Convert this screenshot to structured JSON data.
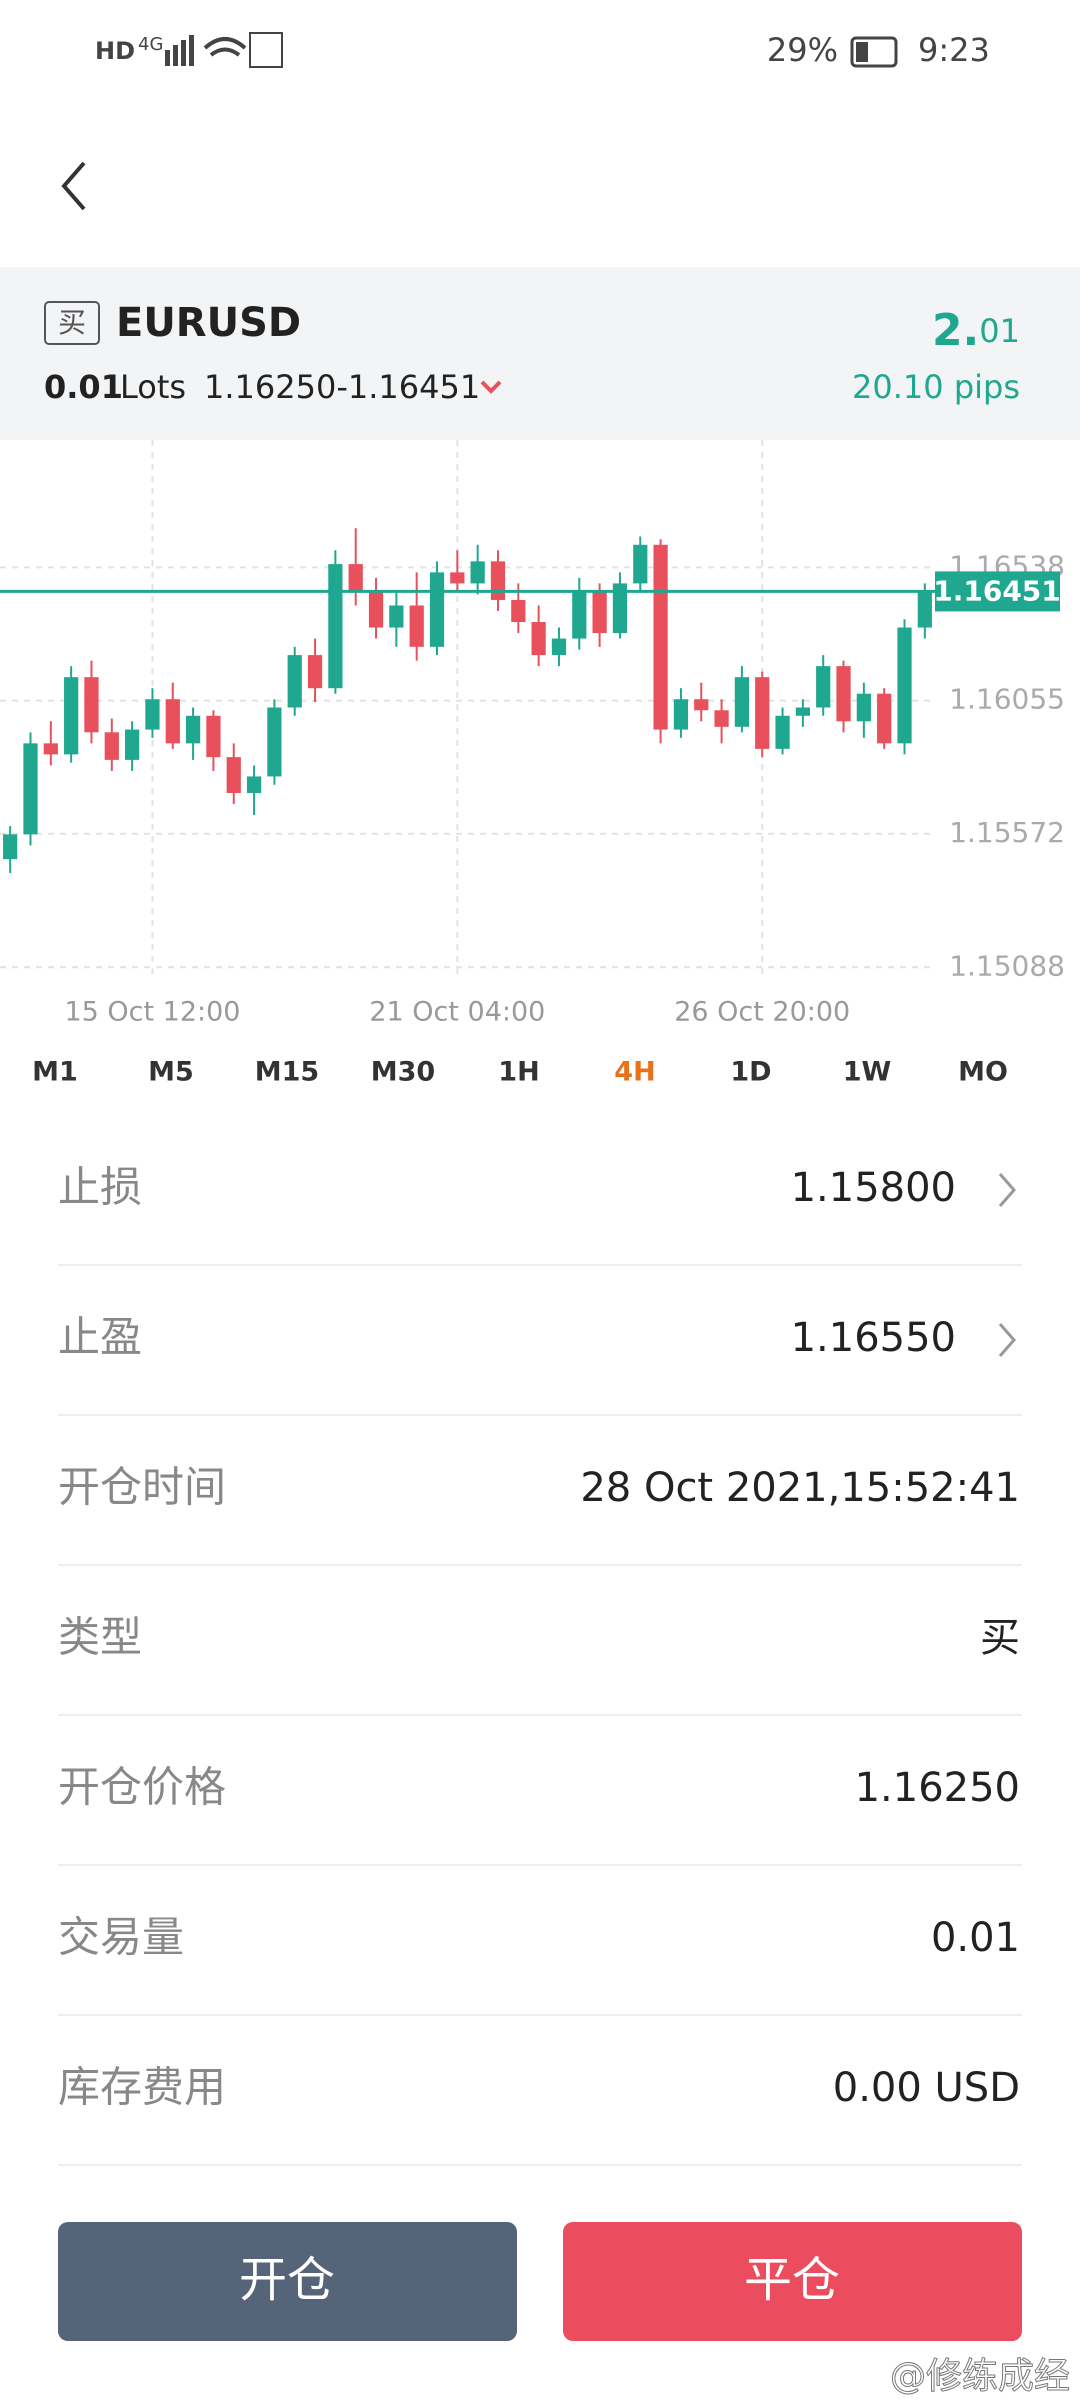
{
  "status_bar": {
    "network": "HD",
    "signal": "4G",
    "battery": "29%",
    "time": "9:23"
  },
  "header": {
    "side_badge": "买",
    "symbol": "EURUSD",
    "lots": "0.01",
    "lots_unit": "Lots",
    "price_range": "1.16250-1.16451",
    "profit_int": "2.",
    "profit_dec": "01",
    "pips": "20.10 pips"
  },
  "chart_data": {
    "type": "candlestick",
    "categories": [
      null,
      null,
      null,
      null,
      null,
      null,
      null,
      "15 Oct  12:00",
      null,
      null,
      null,
      null,
      null,
      null,
      null,
      null,
      null,
      null,
      null,
      null,
      null,
      null,
      "21 Oct  04:00",
      null,
      null,
      null,
      null,
      null,
      null,
      null,
      null,
      null,
      null,
      null,
      null,
      null,
      null,
      "26 Oct  20:00",
      null,
      null,
      null,
      null,
      null,
      null,
      null,
      null
    ],
    "open": [
      1.1548,
      1.1557,
      1.159,
      1.1586,
      1.1614,
      1.1594,
      1.1584,
      1.1595,
      1.1606,
      1.159,
      1.16,
      1.1585,
      1.1572,
      1.1578,
      1.1603,
      1.1622,
      1.161,
      1.1655,
      1.1645,
      1.1632,
      1.164,
      1.1625,
      1.1652,
      1.1648,
      1.1656,
      1.1642,
      1.1634,
      1.1622,
      1.1628,
      1.1645,
      1.163,
      1.1648,
      1.1662,
      1.1595,
      1.1606,
      1.1602,
      1.1596,
      1.1614,
      1.1588,
      1.16,
      1.1603,
      1.1618,
      1.1598,
      1.1608,
      1.159,
      1.1632
    ],
    "high": [
      1.156,
      1.1594,
      1.1598,
      1.1618,
      1.162,
      1.1599,
      1.1598,
      1.161,
      1.1612,
      1.1603,
      1.1602,
      1.159,
      1.1582,
      1.1606,
      1.1625,
      1.1628,
      1.166,
      1.1668,
      1.165,
      1.1645,
      1.1652,
      1.1656,
      1.166,
      1.1662,
      1.166,
      1.1648,
      1.164,
      1.1632,
      1.165,
      1.1648,
      1.1652,
      1.1665,
      1.1664,
      1.161,
      1.1612,
      1.1606,
      1.1618,
      1.1616,
      1.1603,
      1.1606,
      1.1622,
      1.162,
      1.1612,
      1.161,
      1.1635,
      1.1648
    ],
    "low": [
      1.1543,
      1.1553,
      1.1582,
      1.1583,
      1.159,
      1.158,
      1.158,
      1.1592,
      1.1588,
      1.1584,
      1.158,
      1.1568,
      1.1564,
      1.1575,
      1.16,
      1.1605,
      1.1608,
      1.164,
      1.1628,
      1.1625,
      1.162,
      1.1622,
      1.1645,
      1.1644,
      1.1638,
      1.163,
      1.1618,
      1.1618,
      1.1624,
      1.1625,
      1.1628,
      1.1645,
      1.159,
      1.1592,
      1.1598,
      1.159,
      1.1594,
      1.1585,
      1.1586,
      1.1596,
      1.16,
      1.1594,
      1.1592,
      1.1588,
      1.1586,
      1.1628
    ],
    "close": [
      1.1557,
      1.159,
      1.1586,
      1.1614,
      1.1594,
      1.1584,
      1.1595,
      1.1606,
      1.159,
      1.16,
      1.1585,
      1.1572,
      1.1578,
      1.1603,
      1.1622,
      1.161,
      1.1655,
      1.1645,
      1.1632,
      1.164,
      1.1625,
      1.1652,
      1.1648,
      1.1656,
      1.1642,
      1.1634,
      1.1622,
      1.1628,
      1.1645,
      1.163,
      1.1648,
      1.1662,
      1.1595,
      1.1606,
      1.1602,
      1.1596,
      1.1614,
      1.1588,
      1.16,
      1.1603,
      1.1618,
      1.1598,
      1.1608,
      1.159,
      1.1632,
      1.1645
    ],
    "up_color": "#1fa88f",
    "down_color": "#e8505b",
    "ylim": [
      1.1506,
      1.17
    ],
    "yticks": [
      1.15088,
      1.15572,
      1.16055,
      1.16538
    ],
    "grid": true,
    "price_line": {
      "value": 1.16451,
      "color": "#1fa88f"
    }
  },
  "timeframes": [
    "M1",
    "M5",
    "M15",
    "M30",
    "1H",
    "4H",
    "1D",
    "1W",
    "MO"
  ],
  "active_timeframe": 5,
  "details": [
    {
      "label": "止损",
      "value": "1.15800",
      "arrow": true
    },
    {
      "label": "止盈",
      "value": "1.16550",
      "arrow": true
    },
    {
      "label": "开仓时间",
      "value": "28 Oct 2021,15:52:41",
      "arrow": false
    },
    {
      "label": "类型",
      "value": "买",
      "arrow": false
    },
    {
      "label": "开仓价格",
      "value": "1.16250",
      "arrow": false
    },
    {
      "label": "交易量",
      "value": "0.01",
      "arrow": false
    },
    {
      "label": "库存费用",
      "value": "0.00 USD",
      "arrow": false
    }
  ],
  "buttons": {
    "open": "开仓",
    "close": "平仓"
  },
  "watermark": "@修练成经"
}
